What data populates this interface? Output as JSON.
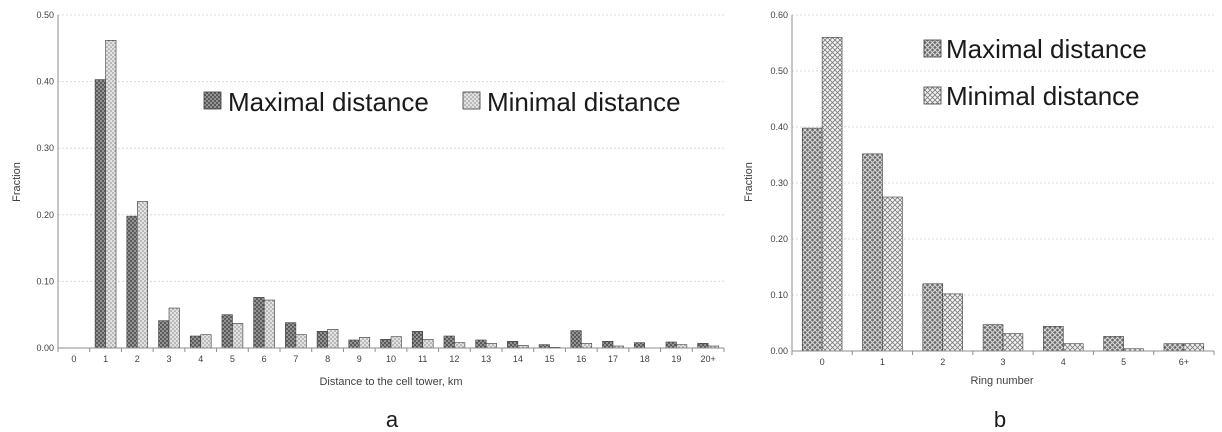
{
  "chart_data": [
    {
      "type": "bar",
      "panel_label": "a",
      "xlabel": "Distance to the cell tower, km",
      "ylabel": "Fraction",
      "ylim": [
        0,
        0.5
      ],
      "yticks": [
        "0.00",
        "0.10",
        "0.20",
        "0.30",
        "0.40",
        "0.50"
      ],
      "categories": [
        "0",
        "1",
        "2",
        "3",
        "4",
        "5",
        "6",
        "7",
        "8",
        "9",
        "10",
        "11",
        "12",
        "13",
        "14",
        "15",
        "16",
        "17",
        "18",
        "19",
        "20+"
      ],
      "series": [
        {
          "name": "Maximal distance",
          "pattern": "dark-dots",
          "values": [
            0,
            0.403,
            0.198,
            0.041,
            0.018,
            0.05,
            0.076,
            0.038,
            0.025,
            0.012,
            0.013,
            0.025,
            0.018,
            0.012,
            0.01,
            0.005,
            0.026,
            0.01,
            0.008,
            0.009,
            0.007
          ]
        },
        {
          "name": "Minimal distance",
          "pattern": "light-dots",
          "values": [
            0,
            0.462,
            0.22,
            0.06,
            0.02,
            0.037,
            0.072,
            0.02,
            0.028,
            0.016,
            0.017,
            0.013,
            0.008,
            0.007,
            0.004,
            0.001,
            0.007,
            0.003,
            0,
            0.005,
            0.003
          ]
        }
      ],
      "grid": true,
      "legend": "top-right"
    },
    {
      "type": "bar",
      "panel_label": "b",
      "xlabel": "Ring number",
      "ylabel": "Fraction",
      "ylim": [
        0,
        0.6
      ],
      "yticks": [
        "0.00",
        "0.10",
        "0.20",
        "0.30",
        "0.40",
        "0.50",
        "0.60"
      ],
      "categories": [
        "0",
        "1",
        "2",
        "3",
        "4",
        "5",
        "6+"
      ],
      "series": [
        {
          "name": "Maximal distance",
          "pattern": "dark-grid",
          "values": [
            0.398,
            0.352,
            0.12,
            0.047,
            0.044,
            0.026,
            0.013
          ]
        },
        {
          "name": "Minimal distance",
          "pattern": "light-grid",
          "values": [
            0.56,
            0.275,
            0.102,
            0.031,
            0.013,
            0.004,
            0.013
          ]
        }
      ],
      "grid": true,
      "legend": "top-right"
    }
  ]
}
